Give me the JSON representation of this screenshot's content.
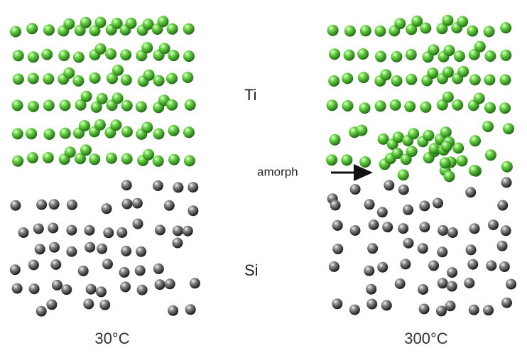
{
  "labels": {
    "top_layer": "Ti",
    "bottom_layer": "Si",
    "interface": "amorph"
  },
  "panels": [
    {
      "temperature": "30°C"
    },
    {
      "temperature": "300°C"
    }
  ]
}
